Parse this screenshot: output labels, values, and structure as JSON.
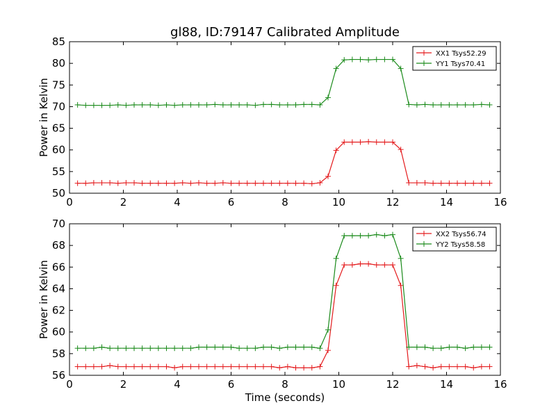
{
  "figure": {
    "title": "gl88, ID:79147 Calibrated Amplitude"
  },
  "chart_data": [
    {
      "type": "line",
      "title": "gl88, ID:79147 Calibrated Amplitude",
      "xlabel": "",
      "ylabel": "Power in Kelvin",
      "xlim": [
        0,
        16
      ],
      "ylim": [
        50,
        85
      ],
      "xticks": [
        "0",
        "2",
        "4",
        "6",
        "8",
        "10",
        "12",
        "14",
        "16"
      ],
      "yticks": [
        "50",
        "55",
        "60",
        "65",
        "70",
        "75",
        "80",
        "85"
      ],
      "grid": false,
      "legend": "top-right",
      "x": [
        0.3,
        0.6,
        0.9,
        1.2,
        1.5,
        1.8,
        2.1,
        2.4,
        2.7,
        3.0,
        3.3,
        3.6,
        3.9,
        4.2,
        4.5,
        4.8,
        5.1,
        5.4,
        5.7,
        6.0,
        6.3,
        6.6,
        6.9,
        7.2,
        7.5,
        7.8,
        8.1,
        8.4,
        8.7,
        9.0,
        9.3,
        9.6,
        9.9,
        10.2,
        10.5,
        10.8,
        11.1,
        11.4,
        11.7,
        12.0,
        12.3,
        12.6,
        12.9,
        13.2,
        13.5,
        13.8,
        14.1,
        14.4,
        14.7,
        15.0,
        15.3,
        15.6
      ],
      "series": [
        {
          "name": "XX1 Tsys52.29",
          "color": "#e41a1c",
          "values": [
            52.3,
            52.3,
            52.4,
            52.4,
            52.4,
            52.3,
            52.4,
            52.4,
            52.3,
            52.3,
            52.3,
            52.3,
            52.3,
            52.4,
            52.3,
            52.4,
            52.3,
            52.3,
            52.4,
            52.3,
            52.3,
            52.3,
            52.3,
            52.3,
            52.3,
            52.3,
            52.3,
            52.3,
            52.3,
            52.2,
            52.4,
            53.9,
            59.9,
            61.8,
            61.8,
            61.8,
            61.9,
            61.8,
            61.8,
            61.8,
            60.1,
            52.4,
            52.4,
            52.4,
            52.3,
            52.3,
            52.3,
            52.3,
            52.3,
            52.3,
            52.3,
            52.3
          ]
        },
        {
          "name": "YY1 Tsys70.41",
          "color": "#1a8a1a",
          "values": [
            70.4,
            70.3,
            70.3,
            70.3,
            70.3,
            70.4,
            70.3,
            70.4,
            70.4,
            70.4,
            70.3,
            70.4,
            70.3,
            70.4,
            70.4,
            70.4,
            70.4,
            70.5,
            70.4,
            70.4,
            70.4,
            70.4,
            70.3,
            70.5,
            70.5,
            70.4,
            70.4,
            70.4,
            70.5,
            70.5,
            70.4,
            72.1,
            78.8,
            80.8,
            80.9,
            80.9,
            80.8,
            80.9,
            80.9,
            80.9,
            78.8,
            70.5,
            70.4,
            70.5,
            70.4,
            70.4,
            70.4,
            70.4,
            70.4,
            70.4,
            70.5,
            70.4
          ]
        }
      ]
    },
    {
      "type": "line",
      "title": "",
      "xlabel": "Time (seconds)",
      "ylabel": "Power in Kelvin",
      "xlim": [
        0,
        16
      ],
      "ylim": [
        56,
        70
      ],
      "xticks": [
        "0",
        "2",
        "4",
        "6",
        "8",
        "10",
        "12",
        "14",
        "16"
      ],
      "yticks": [
        "56",
        "58",
        "60",
        "62",
        "64",
        "66",
        "68",
        "70"
      ],
      "grid": false,
      "legend": "top-right",
      "x": [
        0.3,
        0.6,
        0.9,
        1.2,
        1.5,
        1.8,
        2.1,
        2.4,
        2.7,
        3.0,
        3.3,
        3.6,
        3.9,
        4.2,
        4.5,
        4.8,
        5.1,
        5.4,
        5.7,
        6.0,
        6.3,
        6.6,
        6.9,
        7.2,
        7.5,
        7.8,
        8.1,
        8.4,
        8.7,
        9.0,
        9.3,
        9.6,
        9.9,
        10.2,
        10.5,
        10.8,
        11.1,
        11.4,
        11.7,
        12.0,
        12.3,
        12.6,
        12.9,
        13.2,
        13.5,
        13.8,
        14.1,
        14.4,
        14.7,
        15.0,
        15.3,
        15.6
      ],
      "series": [
        {
          "name": "XX2 Tsys56.74",
          "color": "#e41a1c",
          "values": [
            56.8,
            56.8,
            56.8,
            56.8,
            56.9,
            56.8,
            56.8,
            56.8,
            56.8,
            56.8,
            56.8,
            56.8,
            56.7,
            56.8,
            56.8,
            56.8,
            56.8,
            56.8,
            56.8,
            56.8,
            56.8,
            56.8,
            56.8,
            56.8,
            56.8,
            56.7,
            56.8,
            56.7,
            56.7,
            56.7,
            56.8,
            58.3,
            64.3,
            66.2,
            66.2,
            66.3,
            66.3,
            66.2,
            66.2,
            66.2,
            64.3,
            56.8,
            56.9,
            56.8,
            56.7,
            56.8,
            56.8,
            56.8,
            56.8,
            56.7,
            56.8,
            56.8
          ]
        },
        {
          "name": "YY2 Tsys58.58",
          "color": "#1a8a1a",
          "values": [
            58.5,
            58.5,
            58.5,
            58.6,
            58.5,
            58.5,
            58.5,
            58.5,
            58.5,
            58.5,
            58.5,
            58.5,
            58.5,
            58.5,
            58.5,
            58.6,
            58.6,
            58.6,
            58.6,
            58.6,
            58.5,
            58.5,
            58.5,
            58.6,
            58.6,
            58.5,
            58.6,
            58.6,
            58.6,
            58.6,
            58.5,
            60.2,
            66.8,
            68.9,
            68.9,
            68.9,
            68.9,
            69.0,
            68.9,
            69.0,
            66.8,
            58.6,
            58.6,
            58.6,
            58.5,
            58.5,
            58.6,
            58.6,
            58.5,
            58.6,
            58.6,
            58.6
          ]
        }
      ]
    }
  ]
}
